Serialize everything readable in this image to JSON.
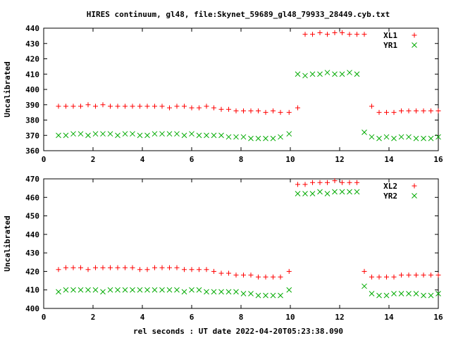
{
  "title": "HIRES continuum, gl48, file:Skynet_59689_gl48_79933_28449.cyb.txt",
  "xlabel": "rel seconds : UT date 2022-04-20T05:23:38.090",
  "chart_data": [
    {
      "type": "scatter",
      "title": "HIRES continuum, gl48, file:Skynet_59689_gl48_79933_28449.cyb.txt",
      "ylabel": "Uncalibrated",
      "xlim": [
        0,
        16
      ],
      "ylim": [
        360,
        440
      ],
      "xticks": [
        0,
        2,
        4,
        6,
        8,
        10,
        12,
        14,
        16
      ],
      "yticks": [
        360,
        370,
        380,
        390,
        400,
        410,
        420,
        430,
        440
      ],
      "legend_position": "top-right",
      "series": [
        {
          "name": "XL1",
          "color": "#ff0000",
          "marker": "plus",
          "x": [
            0.6,
            0.9,
            1.2,
            1.5,
            1.8,
            2.1,
            2.4,
            2.7,
            3.0,
            3.3,
            3.6,
            3.9,
            4.2,
            4.5,
            4.8,
            5.1,
            5.4,
            5.7,
            6.0,
            6.3,
            6.6,
            6.9,
            7.2,
            7.5,
            7.8,
            8.1,
            8.4,
            8.7,
            9.0,
            9.3,
            9.6,
            9.95,
            10.3,
            10.6,
            10.9,
            11.2,
            11.5,
            11.8,
            12.1,
            12.4,
            12.7,
            13.0,
            13.3,
            13.6,
            13.9,
            14.2,
            14.5,
            14.8,
            15.1,
            15.4,
            15.7,
            16.0
          ],
          "y": [
            389,
            389,
            389,
            389,
            390,
            389,
            390,
            389,
            389,
            389,
            389,
            389,
            389,
            389,
            389,
            388,
            389,
            389,
            388,
            388,
            389,
            388,
            387,
            387,
            386,
            386,
            386,
            386,
            385,
            386,
            385,
            385,
            388,
            436,
            436,
            437,
            436,
            437,
            437,
            436,
            436,
            436,
            389,
            385,
            385,
            385,
            386,
            386,
            386,
            386,
            386,
            386
          ]
        },
        {
          "name": "YR1",
          "color": "#00aa00",
          "marker": "cross",
          "x": [
            0.6,
            0.9,
            1.2,
            1.5,
            1.8,
            2.1,
            2.4,
            2.7,
            3.0,
            3.3,
            3.6,
            3.9,
            4.2,
            4.5,
            4.8,
            5.1,
            5.4,
            5.7,
            6.0,
            6.3,
            6.6,
            6.9,
            7.2,
            7.5,
            7.8,
            8.1,
            8.4,
            8.7,
            9.0,
            9.3,
            9.6,
            9.95,
            10.3,
            10.6,
            10.9,
            11.2,
            11.5,
            11.8,
            12.1,
            12.4,
            12.7,
            13.0,
            13.3,
            13.6,
            13.9,
            14.2,
            14.5,
            14.8,
            15.1,
            15.4,
            15.7,
            16.0
          ],
          "y": [
            370,
            370,
            371,
            371,
            370,
            371,
            371,
            371,
            370,
            371,
            371,
            370,
            370,
            371,
            371,
            371,
            371,
            370,
            371,
            370,
            370,
            370,
            370,
            369,
            369,
            369,
            368,
            368,
            368,
            368,
            369,
            371,
            410,
            409,
            410,
            410,
            411,
            410,
            410,
            411,
            410,
            372,
            369,
            368,
            369,
            368,
            369,
            369,
            368,
            368,
            368,
            369
          ]
        }
      ]
    },
    {
      "type": "scatter",
      "ylabel": "Uncalibrated",
      "xlabel": "rel seconds : UT date 2022-04-20T05:23:38.090",
      "xlim": [
        0,
        16
      ],
      "ylim": [
        400,
        470
      ],
      "xticks": [
        0,
        2,
        4,
        6,
        8,
        10,
        12,
        14,
        16
      ],
      "yticks": [
        400,
        410,
        420,
        430,
        440,
        450,
        460,
        470
      ],
      "legend_position": "top-right",
      "series": [
        {
          "name": "XL2",
          "color": "#ff0000",
          "marker": "plus",
          "x": [
            0.6,
            0.9,
            1.2,
            1.5,
            1.8,
            2.1,
            2.4,
            2.7,
            3.0,
            3.3,
            3.6,
            3.9,
            4.2,
            4.5,
            4.8,
            5.1,
            5.4,
            5.7,
            6.0,
            6.3,
            6.6,
            6.9,
            7.2,
            7.5,
            7.8,
            8.1,
            8.4,
            8.7,
            9.0,
            9.3,
            9.6,
            9.95,
            10.3,
            10.6,
            10.9,
            11.2,
            11.5,
            11.8,
            12.1,
            12.4,
            12.7,
            13.0,
            13.3,
            13.6,
            13.9,
            14.2,
            14.5,
            14.8,
            15.1,
            15.4,
            15.7,
            16.0
          ],
          "y": [
            421,
            422,
            422,
            422,
            421,
            422,
            422,
            422,
            422,
            422,
            422,
            421,
            421,
            422,
            422,
            422,
            422,
            421,
            421,
            421,
            421,
            420,
            419,
            419,
            418,
            418,
            418,
            417,
            417,
            417,
            417,
            420,
            467,
            467,
            468,
            468,
            468,
            469,
            468,
            468,
            468,
            420,
            417,
            417,
            417,
            417,
            418,
            418,
            418,
            418,
            418,
            418
          ]
        },
        {
          "name": "YR2",
          "color": "#00aa00",
          "marker": "cross",
          "x": [
            0.6,
            0.9,
            1.2,
            1.5,
            1.8,
            2.1,
            2.4,
            2.7,
            3.0,
            3.3,
            3.6,
            3.9,
            4.2,
            4.5,
            4.8,
            5.1,
            5.4,
            5.7,
            6.0,
            6.3,
            6.6,
            6.9,
            7.2,
            7.5,
            7.8,
            8.1,
            8.4,
            8.7,
            9.0,
            9.3,
            9.6,
            9.95,
            10.3,
            10.6,
            10.9,
            11.2,
            11.5,
            11.8,
            12.1,
            12.4,
            12.7,
            13.0,
            13.3,
            13.6,
            13.9,
            14.2,
            14.5,
            14.8,
            15.1,
            15.4,
            15.7,
            16.0
          ],
          "y": [
            409,
            410,
            410,
            410,
            410,
            410,
            409,
            410,
            410,
            410,
            410,
            410,
            410,
            410,
            410,
            410,
            410,
            409,
            410,
            410,
            409,
            409,
            409,
            409,
            409,
            408,
            408,
            407,
            407,
            407,
            407,
            410,
            462,
            462,
            462,
            463,
            462,
            463,
            463,
            463,
            463,
            412,
            408,
            407,
            407,
            408,
            408,
            408,
            408,
            407,
            407,
            408
          ]
        }
      ]
    }
  ]
}
